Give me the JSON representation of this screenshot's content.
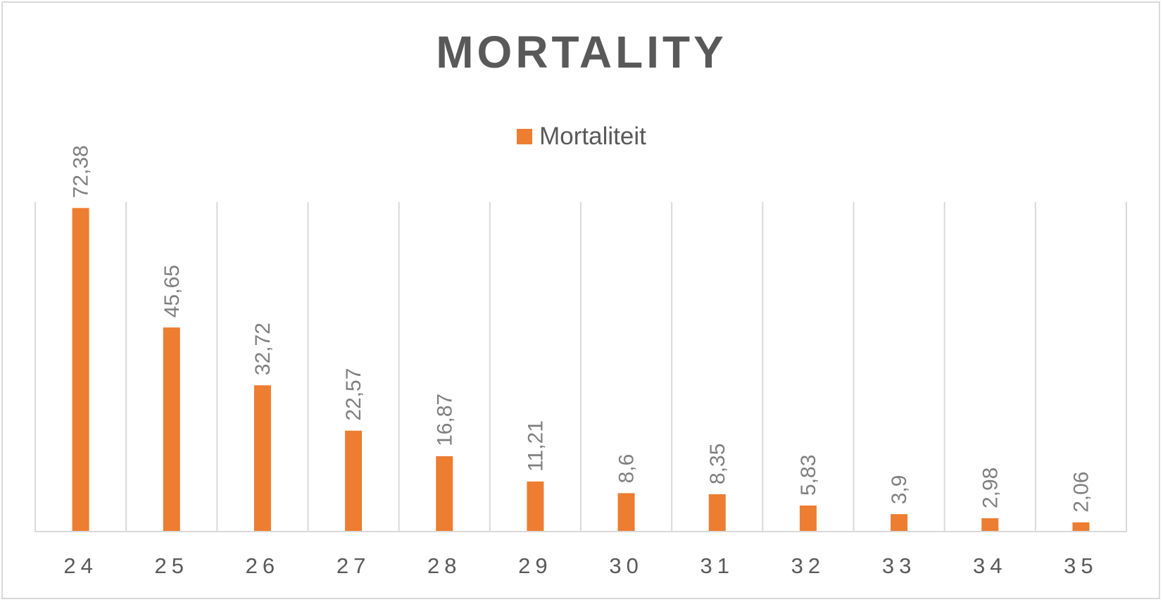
{
  "chart_data": {
    "type": "bar",
    "title": "MORTALITY",
    "xlabel": "",
    "ylabel": "",
    "categories": [
      "24",
      "25",
      "26",
      "27",
      "28",
      "29",
      "30",
      "31",
      "32",
      "33",
      "34",
      "35"
    ],
    "series": [
      {
        "name": "Mortaliteit",
        "values": [
          72.38,
          45.65,
          32.72,
          22.57,
          16.87,
          11.21,
          8.6,
          8.35,
          5.83,
          3.9,
          2.98,
          2.06
        ],
        "data_labels": [
          "72,38",
          "45,65",
          "32,72",
          "22,57",
          "16,87",
          "11,21",
          "8,6",
          "8,35",
          "5,83",
          "3,9",
          "2,98",
          "2,06"
        ]
      }
    ],
    "ylim": [
      0,
      80
    ],
    "grid": "vertical",
    "legend_position": "top",
    "bar_color": "#ED7D31",
    "grid_color": "#d9d9d9",
    "text_color": "#595959",
    "label_color": "#7f7f7f"
  }
}
